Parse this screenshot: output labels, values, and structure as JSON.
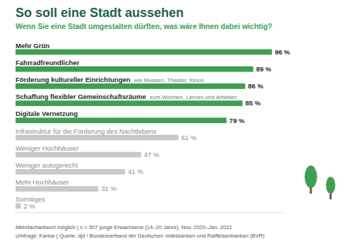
{
  "chart_data": {
    "type": "bar",
    "orientation": "horizontal",
    "title": "So soll eine Stadt aussehen",
    "subtitle": "Wenn Sie eine Stadt umgestalten dürften, was wäre Ihnen dabei wichtig?",
    "categories": [
      "Mehr Grün",
      "Fahrradfreundlicher",
      "Förderung kultureller Einrichtungen",
      "Schaffung flexibler Gemeinschaftsräume",
      "Digitale Vernetzung",
      "Infrastruktur für die Förderung des Nachtlebens",
      "Weniger Hochhäuser",
      "Weniger autogerecht",
      "Mehr Hochhäuser",
      "Sonstiges"
    ],
    "category_notes": [
      null,
      null,
      "wie Museen, Theater, Kinos",
      "zum Wohnen, Lernen und Arbeiten",
      null,
      null,
      null,
      null,
      null,
      null
    ],
    "values": [
      96,
      89,
      86,
      85,
      79,
      61,
      47,
      41,
      31,
      2
    ],
    "value_labels": [
      "96 %",
      "89 %",
      "86 %",
      "85 %",
      "79 %",
      "61 %",
      "47 %",
      "41 %",
      "31 %",
      "2 %"
    ],
    "colors": [
      "#3e9f52",
      "#3e9f52",
      "#3e9f52",
      "#3e9f52",
      "#3e9f52",
      "#c9c9c9",
      "#c9c9c9",
      "#c9c9c9",
      "#c9c9c9",
      "#c9c9c9"
    ],
    "xlim": [
      0,
      100
    ],
    "data_labels": true,
    "tick_labels": false,
    "footnotes": [
      "Mehrfachantwort möglich | n = 507 junge Erwachsene (14–20 Jahre), Nov. 2020–Jan. 2021",
      "Umfrage: Kantar | Quelle: djd / Bundesverband der Deutschen Volksbanken und Raiffeisenbanken (BVR)"
    ]
  }
}
